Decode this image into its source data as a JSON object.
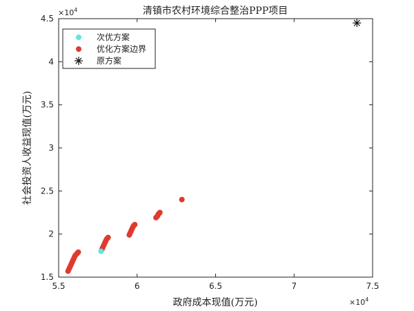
{
  "chart_data": {
    "type": "scatter",
    "title": "清镇市农村环境综合整治PPP项目",
    "xlabel": "政府成本现值(万元)",
    "ylabel": "社会投资人收益现值(万元)",
    "x_multiplier": "×10",
    "x_exponent": "4",
    "y_multiplier": "×10",
    "y_exponent": "4",
    "xlim": [
      5.5,
      7.5
    ],
    "ylim": [
      1.5,
      4.5
    ],
    "x_ticks": [
      "5.5",
      "6",
      "6.5",
      "7",
      "7.5"
    ],
    "y_ticks": [
      "1.5",
      "2",
      "2.5",
      "3",
      "3.5",
      "4",
      "4.5"
    ],
    "legend_position": "top-left",
    "series": [
      {
        "name": "次优方案",
        "marker": "circle",
        "color": "#5ce6e6",
        "points": [
          [
            5.77,
            1.8
          ]
        ]
      },
      {
        "name": "优化方案边界",
        "marker": "circle",
        "color": "#e03a2f",
        "points": [
          [
            5.56,
            1.57
          ],
          [
            5.565,
            1.59
          ],
          [
            5.57,
            1.61
          ],
          [
            5.575,
            1.63
          ],
          [
            5.58,
            1.65
          ],
          [
            5.585,
            1.67
          ],
          [
            5.59,
            1.69
          ],
          [
            5.595,
            1.71
          ],
          [
            5.6,
            1.73
          ],
          [
            5.605,
            1.75
          ],
          [
            5.61,
            1.76
          ],
          [
            5.615,
            1.77
          ],
          [
            5.62,
            1.78
          ],
          [
            5.625,
            1.79
          ],
          [
            5.775,
            1.82
          ],
          [
            5.78,
            1.84
          ],
          [
            5.785,
            1.86
          ],
          [
            5.79,
            1.88
          ],
          [
            5.795,
            1.9
          ],
          [
            5.8,
            1.92
          ],
          [
            5.805,
            1.94
          ],
          [
            5.81,
            1.95
          ],
          [
            5.815,
            1.96
          ],
          [
            5.95,
            1.99
          ],
          [
            5.955,
            2.01
          ],
          [
            5.96,
            2.03
          ],
          [
            5.965,
            2.05
          ],
          [
            5.97,
            2.07
          ],
          [
            5.975,
            2.09
          ],
          [
            5.98,
            2.1
          ],
          [
            5.985,
            2.11
          ],
          [
            6.12,
            2.19
          ],
          [
            6.125,
            2.2
          ],
          [
            6.13,
            2.21
          ],
          [
            6.135,
            2.23
          ],
          [
            6.14,
            2.24
          ],
          [
            6.145,
            2.25
          ],
          [
            6.285,
            2.4
          ]
        ]
      },
      {
        "name": "原方案",
        "marker": "asterisk",
        "color": "#111111",
        "points": [
          [
            7.4,
            4.45
          ]
        ]
      }
    ]
  }
}
